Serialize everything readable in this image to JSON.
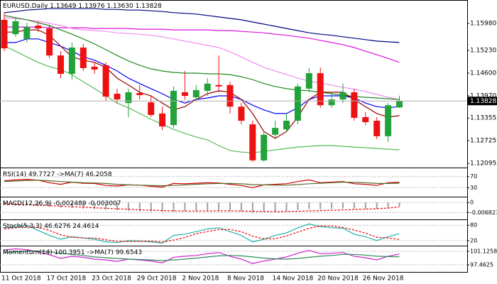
{
  "chart_data": [
    {
      "type": "candlestick",
      "symbol": "EURUSD,Daily",
      "header_values": [
        "1.13649",
        "1.13976",
        "1.13630",
        "1.13828"
      ],
      "categories": [
        "11 Oct 2018",
        null,
        null,
        null,
        "17 Oct 2018",
        null,
        null,
        null,
        "23 Oct 2018",
        null,
        null,
        null,
        "29 Oct 2018",
        null,
        null,
        null,
        "2 Nov 2018",
        null,
        null,
        null,
        "8 Nov 2018",
        null,
        null,
        null,
        "14 Nov 2018",
        null,
        null,
        null,
        "20 Nov 2018",
        null,
        null,
        null,
        "26 Nov 2018",
        null,
        null,
        null
      ],
      "open": [
        1.1608,
        1.1568,
        1.1555,
        1.1592,
        1.1584,
        1.1509,
        1.1458,
        1.1531,
        1.1478,
        1.1482,
        1.1403,
        1.1377,
        1.1405,
        1.1379,
        1.1348,
        1.1316,
        1.1407,
        1.1393,
        1.1411,
        1.1427,
        1.1427,
        1.1367,
        1.1318,
        1.1218,
        1.1289,
        1.1304,
        1.1328,
        1.1417,
        1.146,
        1.1371,
        1.1387,
        1.1407,
        1.1338,
        1.1328,
        1.1285,
        1.13649
      ],
      "high": [
        1.1628,
        1.1614,
        1.16,
        1.1604,
        1.1594,
        1.1521,
        1.1545,
        1.1541,
        1.149,
        1.149,
        1.1417,
        1.1417,
        1.1427,
        1.1397,
        1.1367,
        1.1423,
        1.1466,
        1.1427,
        1.1446,
        1.1509,
        1.1436,
        1.1377,
        1.1328,
        1.1298,
        1.1328,
        1.1348,
        1.1431,
        1.1474,
        1.1476,
        1.1407,
        1.1431,
        1.1417,
        1.1352,
        1.1338,
        1.1377,
        1.13976
      ],
      "low": [
        1.1521,
        1.1561,
        1.1545,
        1.1574,
        1.1501,
        1.1446,
        1.1442,
        1.1466,
        1.1458,
        1.1383,
        1.1377,
        1.1338,
        1.1387,
        1.1338,
        1.1302,
        1.1308,
        1.1387,
        1.1383,
        1.1397,
        1.1407,
        1.1348,
        1.1318,
        1.1214,
        1.1214,
        1.1279,
        1.1296,
        1.1318,
        1.1407,
        1.1364,
        1.1364,
        1.1377,
        1.1328,
        1.1316,
        1.1277,
        1.1269,
        1.1363
      ],
      "close": [
        1.1529,
        1.1604,
        1.1588,
        1.1584,
        1.1509,
        1.1458,
        1.1531,
        1.1474,
        1.147,
        1.1395,
        1.1387,
        1.1407,
        1.1399,
        1.1344,
        1.1312,
        1.1411,
        1.1397,
        1.1413,
        1.1431,
        1.1423,
        1.1367,
        1.1328,
        1.1218,
        1.1289,
        1.1308,
        1.1328,
        1.1423,
        1.146,
        1.1371,
        1.1387,
        1.1407,
        1.1336,
        1.1324,
        1.1285,
        1.1371,
        1.13828
      ],
      "up_color": "#22a23a",
      "down_color": "#ee1111",
      "series": [
        {
          "color": "#000080",
          "values": [
            1.1628,
            1.1631,
            1.1635,
            1.1637,
            1.1639,
            1.1639,
            1.1639,
            1.1639,
            1.1639,
            1.1637,
            1.1637,
            1.1635,
            1.1635,
            1.1633,
            1.1631,
            1.1628,
            1.1626,
            1.1624,
            1.162,
            1.1616,
            1.1612,
            1.1608,
            1.1602,
            1.1596,
            1.159,
            1.1584,
            1.1578,
            1.1572,
            1.1568,
            1.1565,
            1.1561,
            1.1557,
            1.1553,
            1.1549,
            1.1547,
            1.1545
          ]
        },
        {
          "color": "#dd11dd",
          "values": [
            1.1588,
            1.1588,
            1.1588,
            1.1588,
            1.1586,
            1.1586,
            1.1586,
            1.1586,
            1.1584,
            1.1584,
            1.1584,
            1.1584,
            1.1582,
            1.1582,
            1.1582,
            1.158,
            1.158,
            1.158,
            1.158,
            1.1578,
            1.1578,
            1.1576,
            1.1574,
            1.1572,
            1.1568,
            1.1565,
            1.1561,
            1.1557,
            1.1551,
            1.1545,
            1.1539,
            1.1531,
            1.1521,
            1.1511,
            1.1501,
            1.149
          ]
        },
        {
          "color": "#f08cf0",
          "values": [
            1.1614,
            1.1612,
            1.1608,
            1.1604,
            1.1598,
            1.1592,
            1.1584,
            1.158,
            1.1578,
            1.1576,
            1.1572,
            1.157,
            1.1568,
            1.1565,
            1.1561,
            1.1555,
            1.1549,
            1.1543,
            1.1537,
            1.1531,
            1.1519,
            1.1505,
            1.149,
            1.1476,
            1.1466,
            1.1456,
            1.1446,
            1.1438,
            1.1432,
            1.1427,
            1.1421,
            1.1415,
            1.1409,
            1.1401,
            1.1393,
            1.1387
          ]
        },
        {
          "color": "#55bb55",
          "values": [
            1.1535,
            1.1521,
            1.1505,
            1.149,
            1.1478,
            1.147,
            1.1456,
            1.1436,
            1.1417,
            1.1397,
            1.1377,
            1.1364,
            1.1348,
            1.1332,
            1.1318,
            1.1304,
            1.1293,
            1.1283,
            1.1275,
            1.1259,
            1.1245,
            1.1241,
            1.1239,
            1.1243,
            1.1247,
            1.1251,
            1.1255,
            1.1257,
            1.1259,
            1.1259,
            1.1257,
            1.1255,
            1.1253,
            1.1251,
            1.1249,
            1.1247
          ]
        },
        {
          "color": "#228b22",
          "values": [
            1.162,
            1.1614,
            1.1608,
            1.16,
            1.1592,
            1.158,
            1.1568,
            1.1555,
            1.1541,
            1.1525,
            1.1509,
            1.1494,
            1.1482,
            1.1472,
            1.1466,
            1.1462,
            1.146,
            1.146,
            1.1458,
            1.1458,
            1.1456,
            1.145,
            1.1442,
            1.1431,
            1.1423,
            1.1417,
            1.1413,
            1.1411,
            1.1407,
            1.1403,
            1.1399,
            1.1395,
            1.1393,
            1.1391,
            1.1389,
            1.1387
          ]
        },
        {
          "color": "#0000ff",
          "values": [
            1.1545,
            1.1545,
            1.1555,
            1.1555,
            1.1545,
            1.1535,
            1.1521,
            1.1505,
            1.1496,
            1.1482,
            1.1466,
            1.1446,
            1.1431,
            1.1417,
            1.1403,
            1.1387,
            1.1377,
            1.1387,
            1.1391,
            1.1397,
            1.1397,
            1.1387,
            1.1371,
            1.1358,
            1.1348,
            1.1348,
            1.1364,
            1.1387,
            1.1397,
            1.1397,
            1.1397,
            1.1391,
            1.1377,
            1.1367,
            1.1364,
            1.1367
          ]
        },
        {
          "color": "#990000",
          "values": [
            1.1574,
            1.1574,
            1.158,
            1.158,
            1.1565,
            1.1535,
            1.1505,
            1.1496,
            1.149,
            1.1476,
            1.1446,
            1.1427,
            1.1407,
            1.1397,
            1.1377,
            1.1358,
            1.1367,
            1.1387,
            1.1403,
            1.1411,
            1.1407,
            1.1387,
            1.1348,
            1.1298,
            1.1279,
            1.1298,
            1.1338,
            1.1387,
            1.1407,
            1.1407,
            1.1407,
            1.1387,
            1.1367,
            1.1348,
            1.1338,
            1.1342
          ]
        }
      ],
      "last_price": {
        "value": 1.13828,
        "label": "1.13828"
      },
      "ylim": [
        1.1198,
        1.1663
      ],
      "yticks": [
        {
          "value": 1.1598,
          "label": "1.15980"
        },
        {
          "value": 1.1523,
          "label": "1.15230"
        },
        {
          "value": 1.146,
          "label": "1.14600"
        },
        {
          "value": 1.1397,
          "label": "1.13970"
        },
        1.13355,
        1.12725,
        1.12095
      ],
      "grid": false
    },
    {
      "type": "line",
      "series": [
        {
          "name": "RSI(14)",
          "color": "#cc0000",
          "values": [
            55,
            58,
            60,
            57,
            48,
            42,
            50,
            46,
            45,
            38,
            36,
            40,
            39,
            35,
            32,
            45,
            44,
            46,
            48,
            47,
            42,
            38,
            30,
            40,
            42,
            44,
            52,
            58,
            48,
            50,
            52,
            44,
            42,
            38,
            48,
            49.7727
          ]
        },
        {
          "name": "->MA(7)",
          "color": "#556b2f",
          "values": [
            52,
            54,
            56,
            57,
            55,
            52,
            50,
            48,
            47,
            45,
            42,
            40,
            39,
            38,
            37,
            38,
            40,
            42,
            44,
            45,
            45,
            44,
            41,
            40,
            39,
            39,
            41,
            44,
            46,
            48,
            50,
            49,
            48,
            45,
            45,
            46.2058
          ]
        }
      ],
      "ylim": [
        0,
        100
      ],
      "yticks": [
        70,
        30
      ],
      "grid": true
    },
    {
      "type": "bar-line",
      "title": "MACD(12,26,9)",
      "series": [
        {
          "kind": "bar",
          "color": "#a0a0a0",
          "values": [
            -0.0015,
            -0.0018,
            -0.002,
            -0.0025,
            -0.003,
            -0.0035,
            -0.0038,
            -0.004,
            -0.0043,
            -0.0048,
            -0.0052,
            -0.0055,
            -0.0058,
            -0.006,
            -0.0063,
            -0.0062,
            -0.006,
            -0.0058,
            -0.0056,
            -0.0055,
            -0.0058,
            -0.006,
            -0.0068,
            -0.0066,
            -0.0063,
            -0.006,
            -0.0052,
            -0.0045,
            -0.0046,
            -0.0044,
            -0.004,
            -0.0042,
            -0.0043,
            -0.0045,
            -0.0035,
            -0.002489
          ]
        },
        {
          "kind": "line",
          "dashed": true,
          "color": "#ee0000",
          "values": [
            -0.001,
            -0.0013,
            -0.0015,
            -0.0018,
            -0.0021,
            -0.0025,
            -0.0029,
            -0.0032,
            -0.0036,
            -0.0039,
            -0.0043,
            -0.0046,
            -0.005,
            -0.0052,
            -0.0055,
            -0.0057,
            -0.0058,
            -0.0058,
            -0.0058,
            -0.0057,
            -0.0057,
            -0.0058,
            -0.006,
            -0.0061,
            -0.0062,
            -0.0061,
            -0.006,
            -0.0057,
            -0.0055,
            -0.0053,
            -0.005,
            -0.0048,
            -0.0045,
            -0.0042,
            -0.0038,
            -0.003007
          ]
        }
      ],
      "ylim": [
        -0.0115,
        0.0035
      ],
      "yticks": [
        0,
        -0.006823
      ],
      "grid": true
    },
    {
      "type": "bar-line",
      "title": "Stoch(5,3,3)",
      "series": [
        {
          "kind": "line",
          "color": "#20b2aa",
          "values": [
            70,
            75,
            80,
            60,
            40,
            25,
            35,
            30,
            25,
            15,
            12,
            20,
            18,
            15,
            10,
            40,
            45,
            55,
            65,
            70,
            55,
            40,
            15,
            25,
            40,
            50,
            70,
            85,
            75,
            70,
            68,
            45,
            35,
            20,
            35,
            46.6276
          ]
        },
        {
          "kind": "line",
          "dashed": true,
          "color": "#ee0000",
          "values": [
            65,
            70,
            75,
            72,
            60,
            42,
            33,
            30,
            30,
            23,
            17,
            16,
            17,
            18,
            14,
            22,
            32,
            47,
            55,
            63,
            63,
            55,
            37,
            27,
            27,
            38,
            53,
            68,
            77,
            77,
            71,
            61,
            49,
            33,
            30,
            24.4614
          ]
        }
      ],
      "ylim": [
        0,
        100
      ],
      "yticks": [
        80,
        20
      ],
      "grid": true
    },
    {
      "type": "line",
      "series": [
        {
          "name": "Momentum(14)",
          "color": "#cc22cc",
          "values": [
            101.5,
            101.8,
            101.6,
            101,
            100.2,
            99.2,
            99.8,
            99.5,
            99,
            98.8,
            98.4,
            99,
            98.8,
            98.5,
            98,
            99.5,
            99.8,
            100,
            100.5,
            100.8,
            99.8,
            99,
            97.8,
            98.5,
            99,
            99.6,
            100.6,
            101.4,
            100.5,
            100.6,
            100.8,
            99.8,
            99.4,
            98.8,
            99.8,
            100.3951
          ]
        },
        {
          "name": "->MA(7)",
          "color": "#2e8b57",
          "values": [
            100.8,
            101,
            101.2,
            101.2,
            101,
            100.6,
            100.3,
            100,
            99.6,
            99.4,
            99.2,
            99,
            98.9,
            98.8,
            98.6,
            98.8,
            99,
            99.3,
            99.6,
            99.9,
            100,
            99.9,
            99.6,
            99.3,
            99.1,
            99,
            99.2,
            99.5,
            99.8,
            100,
            100.3,
            100.3,
            100.1,
            99.8,
            99.7,
            99.6543
          ]
        }
      ],
      "ylim": [
        95.53,
        102.48
      ],
      "yticks": [
        101.1258,
        97.4625
      ],
      "grid": true
    }
  ]
}
